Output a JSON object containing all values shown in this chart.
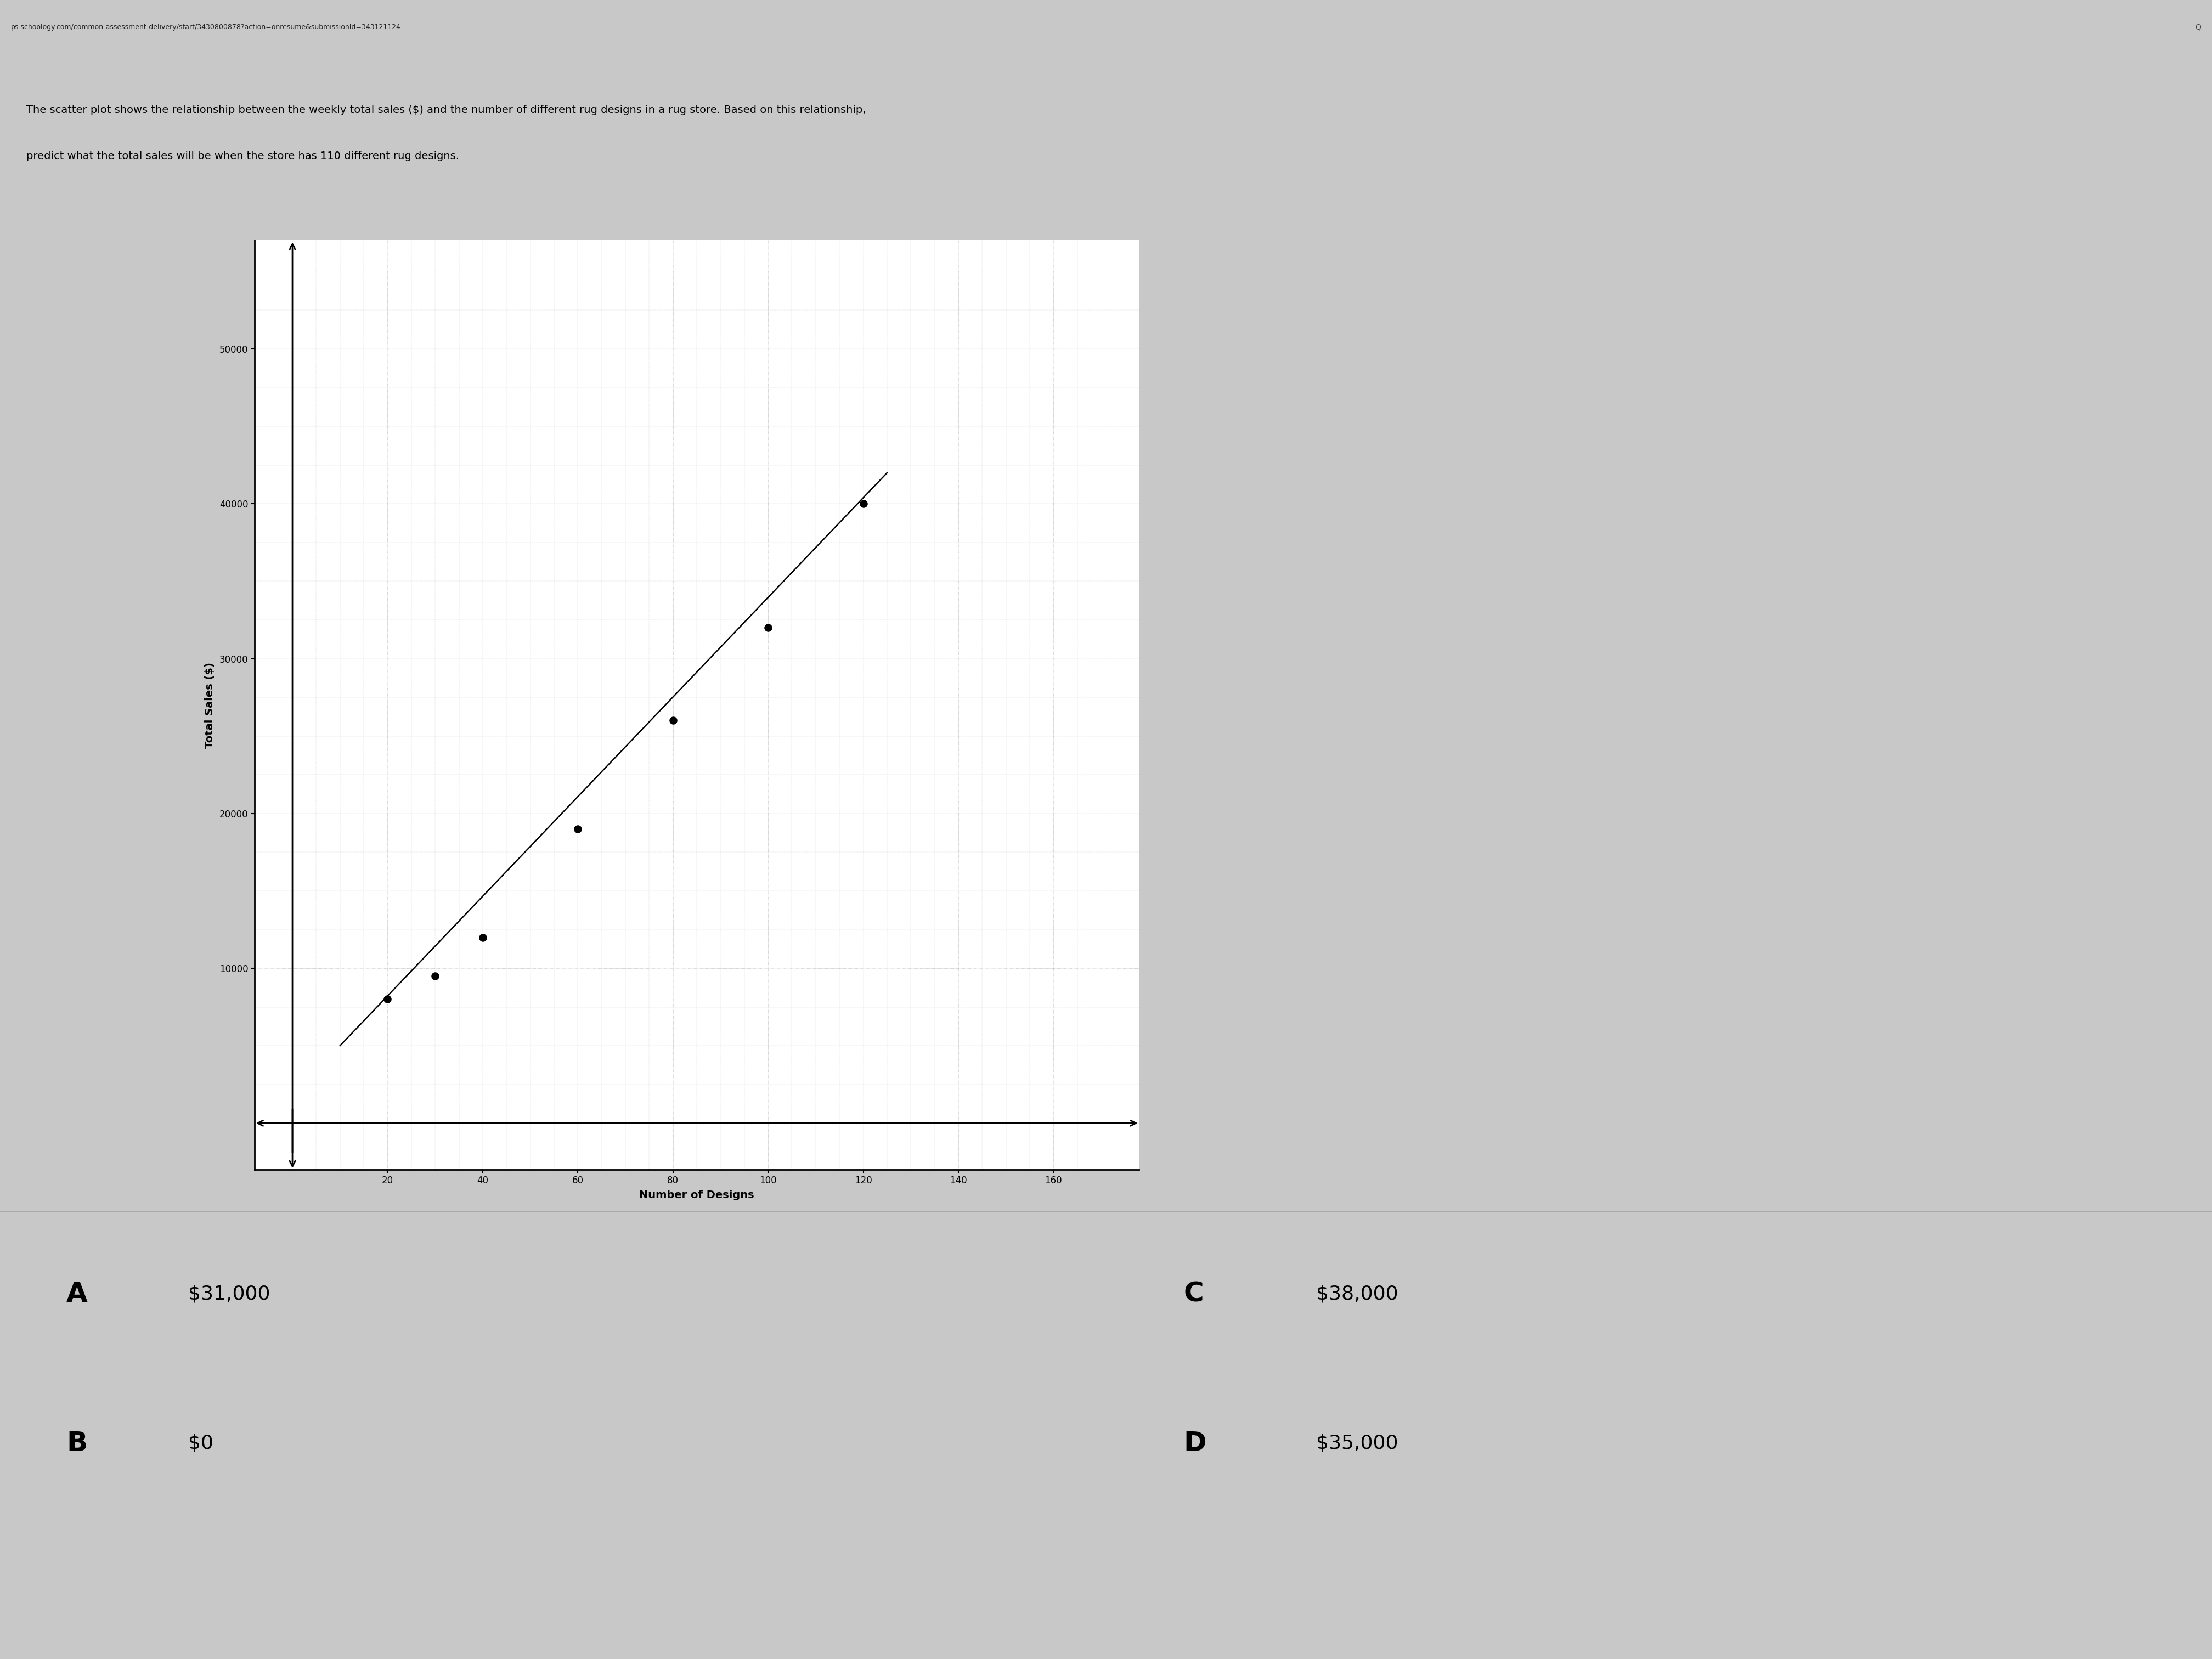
{
  "scatter_x": [
    20,
    30,
    40,
    60,
    80,
    100,
    120
  ],
  "scatter_y": [
    8000,
    9500,
    12000,
    19000,
    26000,
    32000,
    40000
  ],
  "trend_x": [
    10,
    125
  ],
  "trend_y": [
    5000,
    42000
  ],
  "xlabel": "Number of Designs",
  "ylabel": "Total Sales ($)",
  "xlim": [
    -8,
    178
  ],
  "ylim": [
    -3000,
    57000
  ],
  "yticks": [
    10000,
    20000,
    30000,
    40000,
    50000
  ],
  "xticks": [
    20,
    40,
    60,
    80,
    100,
    120,
    140,
    160
  ],
  "url": "ps.schoology.com/common-assessment-delivery/start/3430800878?action=onresume&submissionId=343121124",
  "title_line1": "The scatter plot shows the relationship between the weekly total sales ($) and the number of different rug designs in a rug store. Based on this relationship,",
  "title_line2": "predict what the total sales will be when the store has 110 different rug designs.",
  "option_A_label": "A",
  "option_A_val": "$31,000",
  "option_B_label": "B",
  "option_B_val": "$0",
  "option_C_label": "C",
  "option_C_val": "$38,000",
  "option_D_label": "D",
  "option_D_val": "$35,000",
  "bg_color": "#c8c8c8",
  "url_bar_color": "#e0e0e0",
  "plot_bg": "#ffffff",
  "dot_color": "#000000",
  "line_color": "#000000",
  "text_color": "#000000",
  "url_fontsize": 9,
  "title_fontsize": 14,
  "tick_fontsize": 12,
  "axis_label_fontsize": 14,
  "option_letter_fontsize": 36,
  "option_val_fontsize": 26
}
